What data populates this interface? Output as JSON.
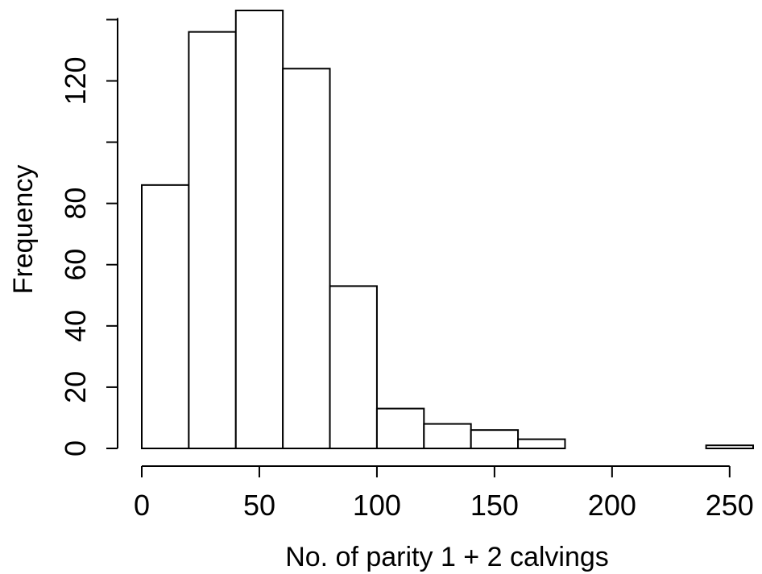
{
  "chart_data": {
    "type": "bar",
    "subtype": "histogram",
    "xlabel": "No. of parity 1 + 2 calvings",
    "ylabel": "Frequency",
    "bin_edges": [
      0,
      20,
      40,
      60,
      80,
      100,
      120,
      140,
      160,
      180,
      200,
      220,
      240,
      260
    ],
    "values": [
      86,
      136,
      143,
      124,
      53,
      13,
      8,
      6,
      3,
      0,
      0,
      0,
      1
    ],
    "xlim": [
      0,
      260
    ],
    "ylim": [
      0,
      143
    ],
    "x_ticks": [
      0,
      50,
      100,
      150,
      200,
      250
    ],
    "x_tick_labels": [
      "0",
      "50",
      "100",
      "150",
      "200",
      "250"
    ],
    "y_ticks": [
      0,
      20,
      40,
      60,
      80,
      100,
      120,
      140
    ],
    "y_tick_labels": [
      "0",
      "20",
      "40",
      "60",
      "80",
      "",
      "120",
      ""
    ],
    "grid": false,
    "legend": "none"
  }
}
